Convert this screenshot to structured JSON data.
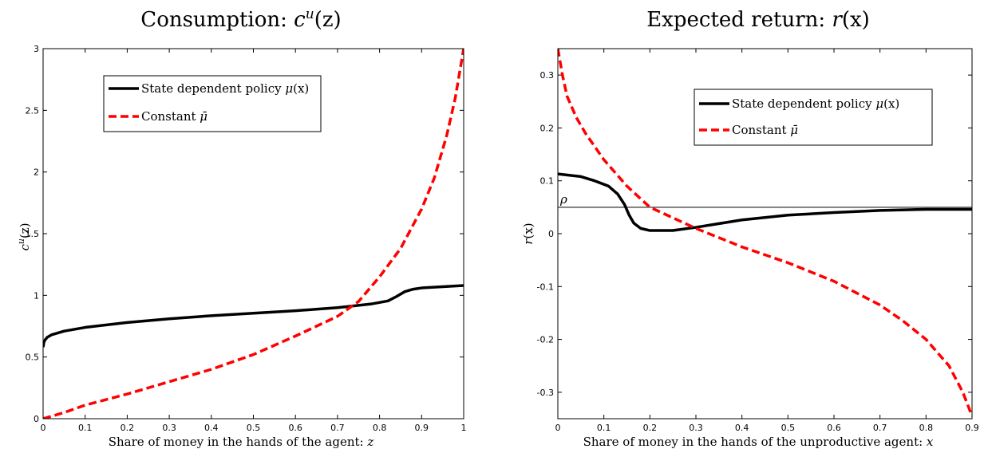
{
  "chart_data": [
    {
      "type": "line",
      "title": {
        "prefix": "Consumption: ",
        "math": "c",
        "sup": "u",
        "arg": "(z)"
      },
      "xlabel": {
        "text": "Share of money in the hands of the agent: ",
        "var": "z"
      },
      "ylabel": {
        "math": "c",
        "sup": "u",
        "arg": "(z)"
      },
      "xlim": [
        0,
        1
      ],
      "ylim": [
        0,
        3
      ],
      "xticks": [
        0,
        0.1,
        0.2,
        0.3,
        0.4,
        0.5,
        0.6,
        0.7,
        0.8,
        0.9,
        1
      ],
      "xtick_labels": [
        "0",
        "0.1",
        "0.2",
        "0.3",
        "0.4",
        "0.5",
        "0.6",
        "0.7",
        "0.8",
        "0.9",
        "1"
      ],
      "yticks": [
        0,
        0.5,
        1,
        1.5,
        2,
        2.5,
        3
      ],
      "ytick_labels": [
        "0",
        "0.5",
        "1",
        "1.5",
        "2",
        "2.5",
        "3"
      ],
      "grid": false,
      "legend_position": "top-center",
      "series": [
        {
          "name": "State dependent policy μ(x)",
          "color": "#000000",
          "style": "solid",
          "x": [
            0.0,
            0.002,
            0.005,
            0.01,
            0.02,
            0.05,
            0.1,
            0.2,
            0.3,
            0.4,
            0.5,
            0.6,
            0.7,
            0.78,
            0.82,
            0.84,
            0.86,
            0.88,
            0.9,
            0.95,
            1.0
          ],
          "y": [
            0.58,
            0.62,
            0.64,
            0.66,
            0.68,
            0.71,
            0.74,
            0.78,
            0.81,
            0.835,
            0.855,
            0.875,
            0.9,
            0.93,
            0.955,
            0.99,
            1.03,
            1.05,
            1.06,
            1.07,
            1.08
          ]
        },
        {
          "name": "Constant μ̄",
          "color": "#ff0000",
          "style": "dashed",
          "x": [
            0.0,
            0.05,
            0.1,
            0.2,
            0.3,
            0.4,
            0.5,
            0.6,
            0.7,
            0.75,
            0.8,
            0.85,
            0.9,
            0.93,
            0.96,
            0.98,
            1.0
          ],
          "y": [
            0.0,
            0.05,
            0.11,
            0.2,
            0.3,
            0.4,
            0.52,
            0.67,
            0.83,
            0.95,
            1.15,
            1.38,
            1.7,
            1.95,
            2.3,
            2.6,
            3.0
          ]
        }
      ]
    },
    {
      "type": "line",
      "title": {
        "prefix": "Expected return: ",
        "math": "r",
        "sup": "",
        "arg": "(x)"
      },
      "xlabel": {
        "text": "Share of money in the hands of the unproductive agent: ",
        "var": "x"
      },
      "ylabel": {
        "math": "r",
        "sup": "",
        "arg": "(x)"
      },
      "xlim": [
        0,
        0.9
      ],
      "ylim": [
        -0.35,
        0.35
      ],
      "xticks": [
        0,
        0.1,
        0.2,
        0.3,
        0.4,
        0.5,
        0.6,
        0.7,
        0.8,
        0.9
      ],
      "xtick_labels": [
        "0",
        "0.1",
        "0.2",
        "0.3",
        "0.4",
        "0.5",
        "0.6",
        "0.7",
        "0.8",
        "0.9"
      ],
      "yticks": [
        -0.3,
        -0.2,
        -0.1,
        0,
        0.1,
        0.2,
        0.3
      ],
      "ytick_labels": [
        "-0.3",
        "-0.2",
        "-0.1",
        "0",
        "0.1",
        "0.2",
        "0.3"
      ],
      "grid": false,
      "legend_position": "top-right",
      "reference_line": {
        "label": "ρ",
        "y": 0.05,
        "color": "#555555"
      },
      "series": [
        {
          "name": "State dependent policy μ(x)",
          "color": "#000000",
          "style": "solid",
          "x": [
            0.0,
            0.05,
            0.08,
            0.11,
            0.13,
            0.145,
            0.155,
            0.165,
            0.18,
            0.2,
            0.25,
            0.3,
            0.4,
            0.5,
            0.6,
            0.7,
            0.8,
            0.9
          ],
          "y": [
            0.113,
            0.108,
            0.1,
            0.09,
            0.075,
            0.055,
            0.035,
            0.02,
            0.01,
            0.006,
            0.006,
            0.012,
            0.026,
            0.035,
            0.04,
            0.044,
            0.046,
            0.046
          ]
        },
        {
          "name": "Constant μ̄",
          "color": "#ff0000",
          "style": "dashed",
          "x": [
            0.0,
            0.01,
            0.02,
            0.04,
            0.06,
            0.08,
            0.1,
            0.15,
            0.2,
            0.25,
            0.3,
            0.4,
            0.5,
            0.6,
            0.7,
            0.75,
            0.8,
            0.85,
            0.88,
            0.9
          ],
          "y": [
            0.35,
            0.3,
            0.26,
            0.22,
            0.19,
            0.165,
            0.14,
            0.09,
            0.05,
            0.03,
            0.01,
            -0.025,
            -0.055,
            -0.09,
            -0.135,
            -0.165,
            -0.2,
            -0.25,
            -0.3,
            -0.345
          ]
        }
      ]
    }
  ]
}
